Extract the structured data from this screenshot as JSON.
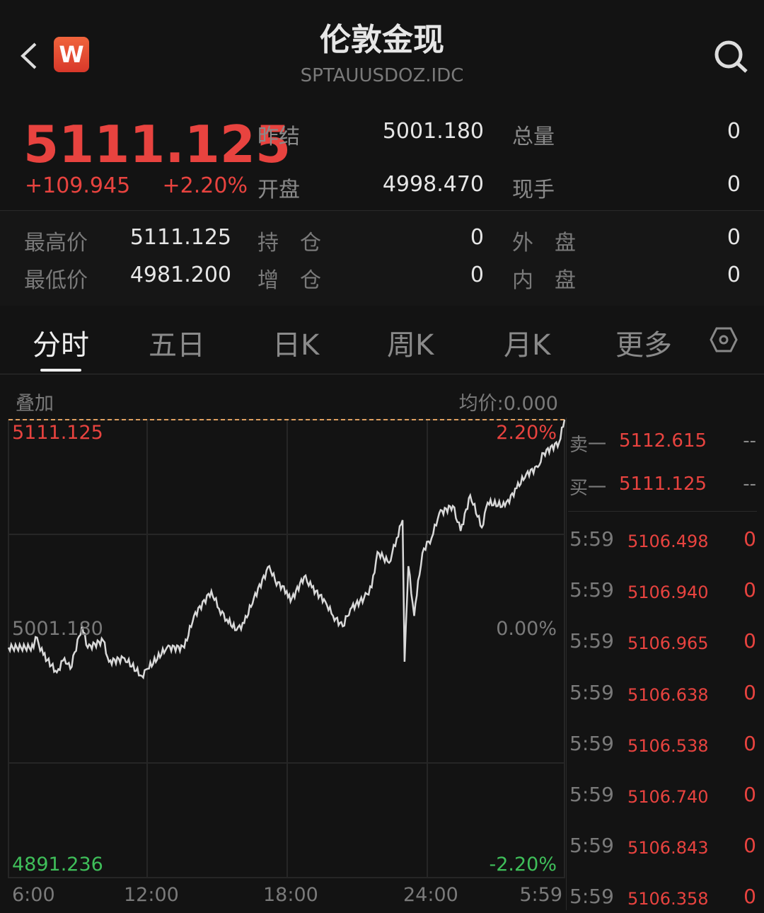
{
  "header": {
    "title": "伦敦金现",
    "code": "SPTAUUSDOZ.IDC",
    "logo": "W",
    "back_icon": "chevron-left-icon",
    "search_icon": "search-icon"
  },
  "quote": {
    "price": "5111.125",
    "change": "+109.945",
    "change_pct": "+2.20%",
    "stats": [
      {
        "label": "昨结",
        "value": "5001.180"
      },
      {
        "label": "总量",
        "value": "0"
      },
      {
        "label": "开盘",
        "value": "4998.470"
      },
      {
        "label": "现手",
        "value": "0"
      }
    ],
    "details": [
      {
        "label": "最高价",
        "value": "5111.125"
      },
      {
        "label": "持　仓",
        "value": "0"
      },
      {
        "label": "外　盘",
        "value": "0"
      },
      {
        "label": "最低价",
        "value": "4981.200"
      },
      {
        "label": "增　仓",
        "value": "0"
      },
      {
        "label": "内　盘",
        "value": "0"
      }
    ]
  },
  "tabs": [
    {
      "label": "分时",
      "active": true
    },
    {
      "label": "五日"
    },
    {
      "label": "日K"
    },
    {
      "label": "周K"
    },
    {
      "label": "月K"
    },
    {
      "label": "更多"
    }
  ],
  "settings_icon": "hexagon-settings-icon",
  "chart": {
    "overlay_label": "叠加",
    "avg_price": "均价:0.000",
    "top_price": "5111.125",
    "top_pct": "2.20%",
    "mid_price": "5001.180",
    "mid_pct": "0.00%",
    "bottom_price": "4891.236",
    "bottom_pct": "-2.20%",
    "x_labels": [
      "6:00",
      "12:00",
      "18:00",
      "24:00",
      "5:59"
    ],
    "colors": {
      "up": "#e8433f",
      "down": "#3fbf5a",
      "line": "#d9d9d9",
      "ref_line": "#e0a060"
    }
  },
  "chart_data": {
    "type": "line",
    "ylim": [
      4891.236,
      5111.125
    ],
    "xlim": [
      "6:00",
      "5:59"
    ],
    "reference": 5001.18,
    "grid": true,
    "x": [
      "6:00",
      "7:05",
      "7:10",
      "7:30",
      "8:05",
      "8:25",
      "8:40",
      "9:10",
      "9:25",
      "10:05",
      "10:20",
      "11:00",
      "11:45",
      "12:00",
      "12:50",
      "13:35",
      "14:00",
      "14:45",
      "15:05",
      "15:25",
      "15:50",
      "16:10",
      "16:35",
      "17:15",
      "17:30",
      "18:00",
      "18:10",
      "18:45",
      "19:05",
      "19:40",
      "20:00",
      "20:25",
      "20:45",
      "21:20",
      "21:40",
      "21:55",
      "22:25",
      "22:45",
      "23:00",
      "23:05",
      "23:15",
      "23:30",
      "23:40",
      "23:55",
      "0:15",
      "0:35",
      "1:10",
      "1:30",
      "1:55",
      "2:25",
      "2:40",
      "3:25",
      "3:55",
      "4:20",
      "4:50",
      "5:05",
      "5:45",
      "5:59"
    ],
    "y": [
      5001.7,
      5001.7,
      5006.8,
      4998.3,
      4989.8,
      4996.6,
      4991.5,
      5011.9,
      5001.7,
      5005.1,
      4994.9,
      4996.6,
      4988.1,
      4991.5,
      5001.7,
      5001.7,
      5016.9,
      5028.8,
      5020.3,
      5015.2,
      5010.1,
      5013.5,
      5025.4,
      5040.8,
      5033.9,
      5028.8,
      5023.8,
      5035.7,
      5030.6,
      5023.8,
      5016.9,
      5011.9,
      5020.3,
      5025.4,
      5030.6,
      5047.6,
      5042.4,
      5054.3,
      5062.9,
      4994.9,
      5040.8,
      5016.9,
      5033.9,
      5049.3,
      5054.3,
      5066.3,
      5069.7,
      5057.7,
      5074.8,
      5059.4,
      5071.3,
      5069.7,
      5078.2,
      5085.0,
      5088.4,
      5095.1,
      5100.3,
      5111.125
    ]
  },
  "orderbook": {
    "asks": [
      {
        "label": "卖一",
        "price": "5112.615",
        "vol": "--"
      }
    ],
    "bids": [
      {
        "label": "买一",
        "price": "5111.125",
        "vol": "--"
      }
    ]
  },
  "ticks": [
    {
      "time": "5:59",
      "price": "5106.498",
      "vol": "0"
    },
    {
      "time": "5:59",
      "price": "5106.940",
      "vol": "0"
    },
    {
      "time": "5:59",
      "price": "5106.965",
      "vol": "0"
    },
    {
      "time": "5:59",
      "price": "5106.638",
      "vol": "0"
    },
    {
      "time": "5:59",
      "price": "5106.538",
      "vol": "0"
    },
    {
      "time": "5:59",
      "price": "5106.740",
      "vol": "0"
    },
    {
      "time": "5:59",
      "price": "5106.843",
      "vol": "0"
    },
    {
      "time": "5:59",
      "price": "5106.358",
      "vol": "0"
    }
  ]
}
